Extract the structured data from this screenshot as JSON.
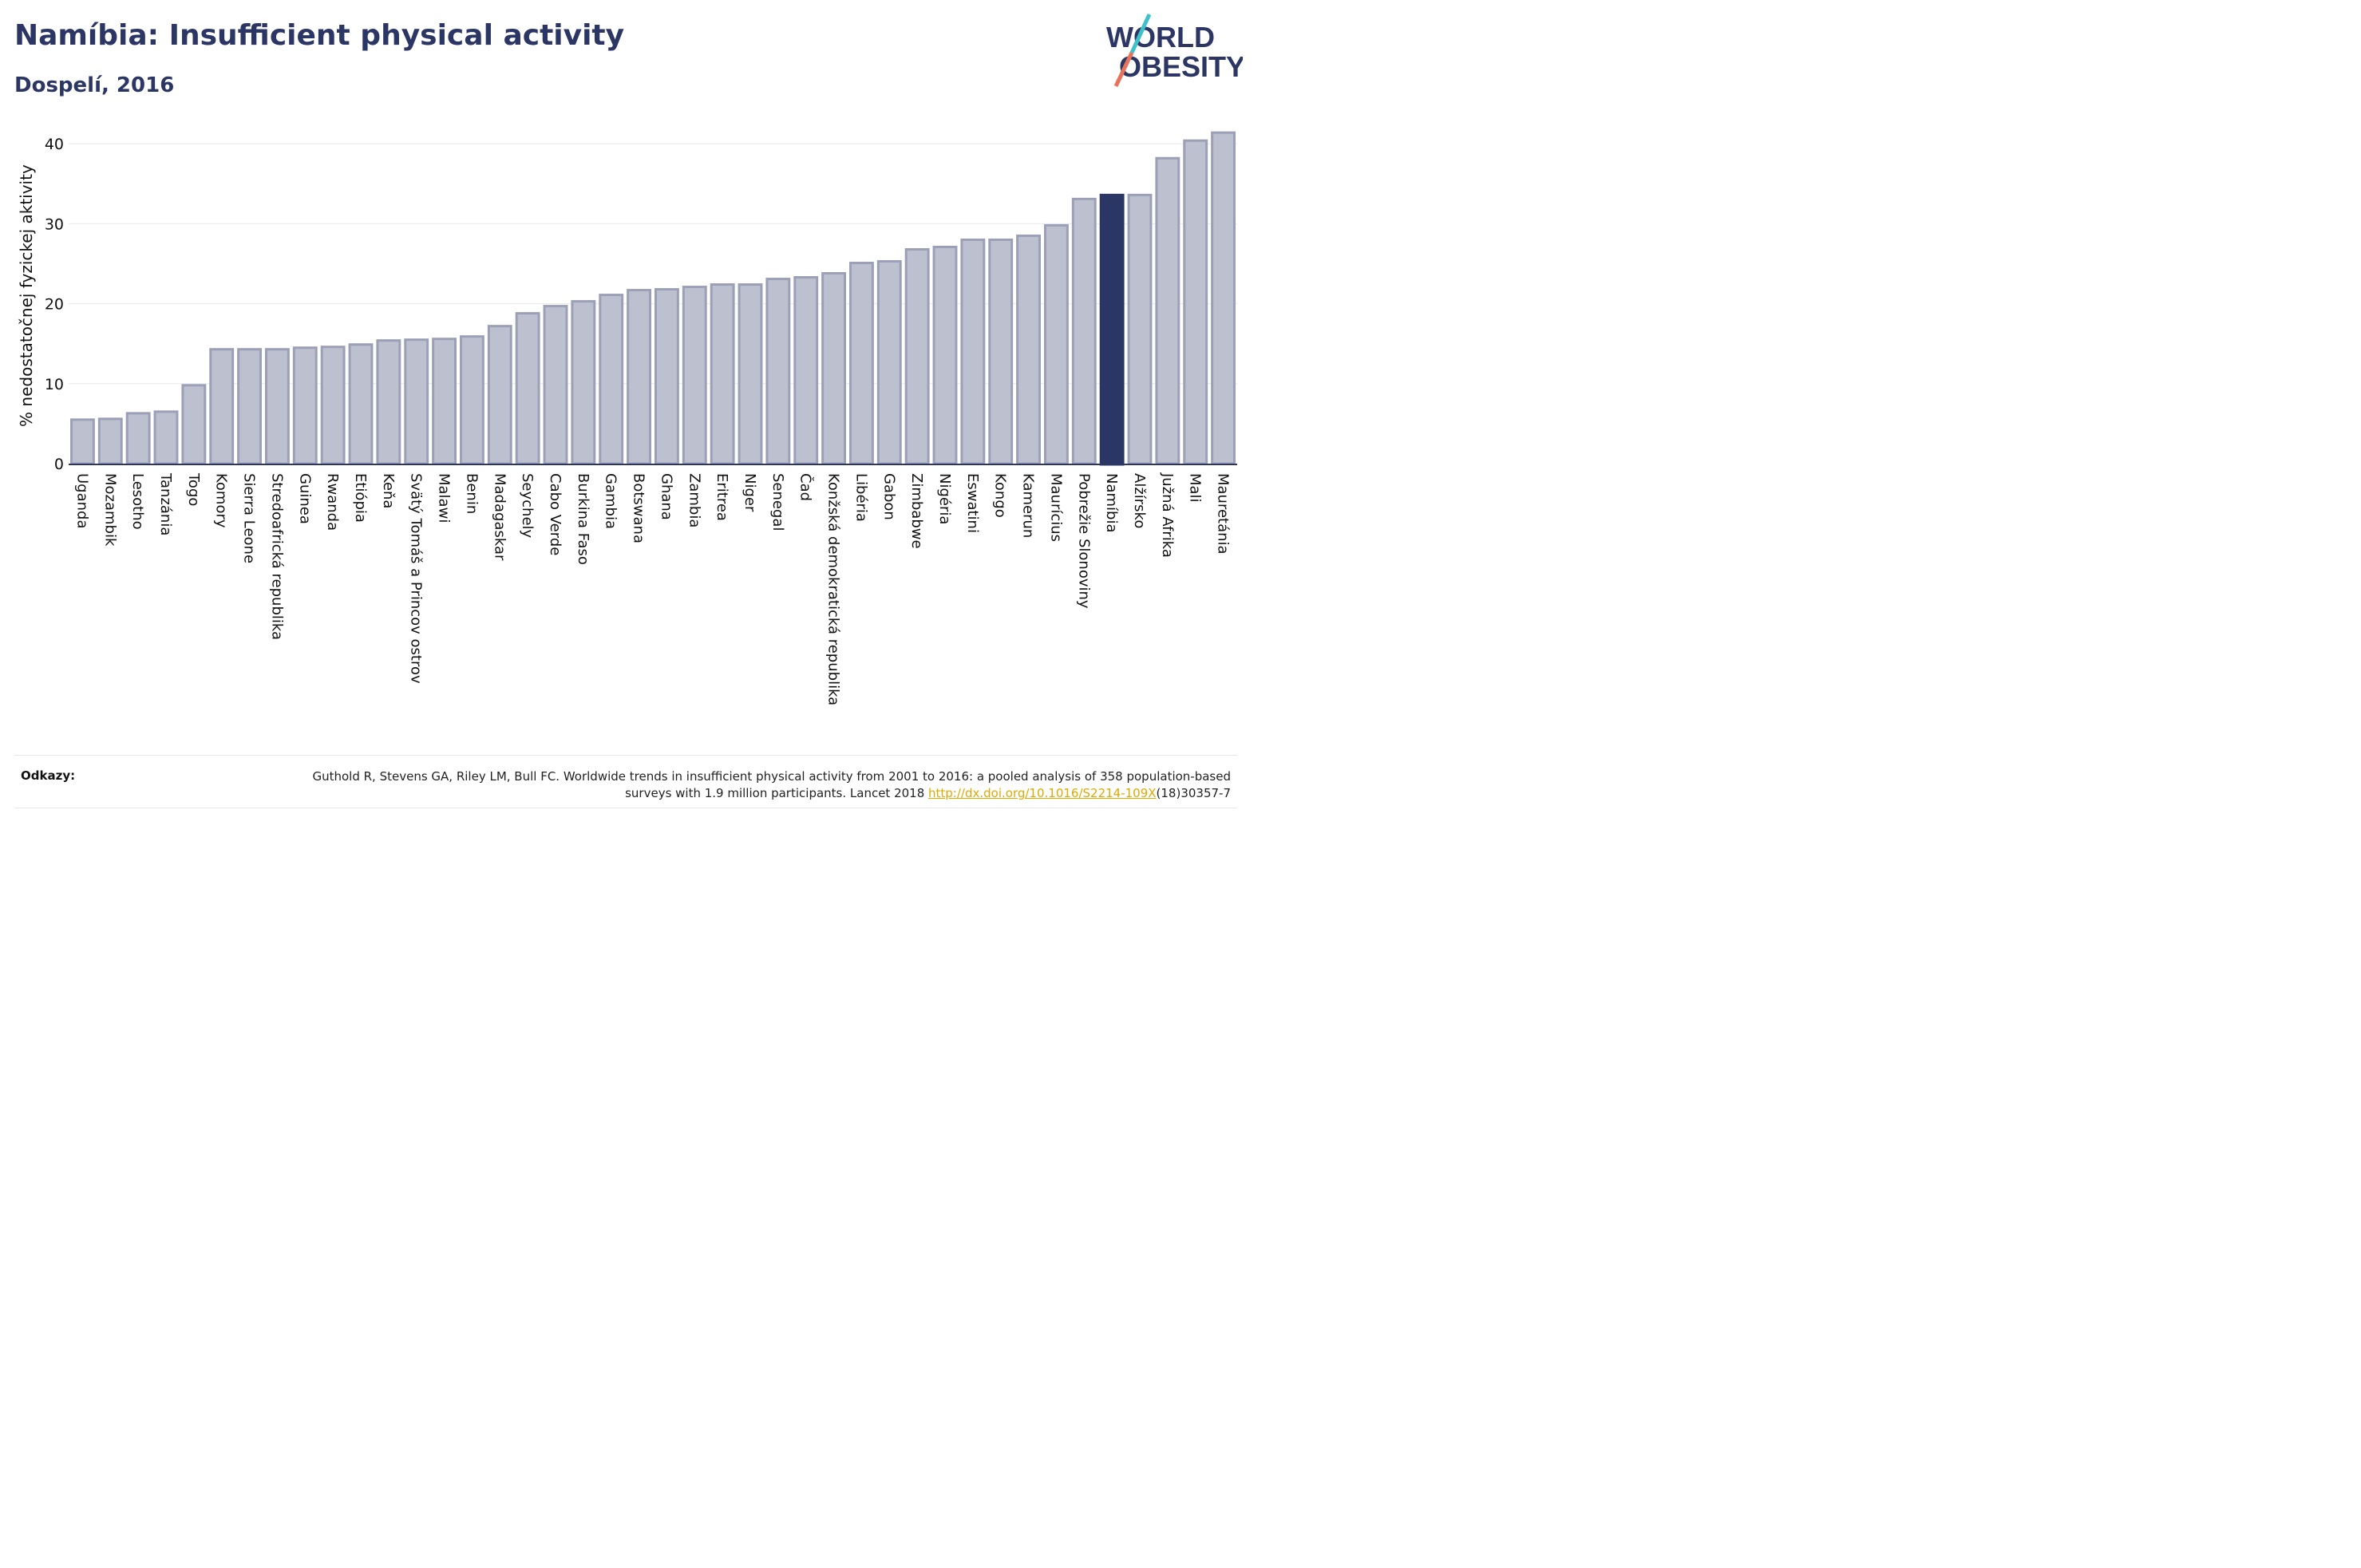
{
  "title": "Namíbia: Insufficient physical activity",
  "subtitle": "Dospelí, 2016",
  "logo": {
    "line1": "WORLD",
    "line2": "OBESITY",
    "slash_colors": [
      "#3cc2c8",
      "#e8735a"
    ]
  },
  "references": {
    "label": "Odkazy:",
    "text_before": "Guthold R, Stevens GA, Riley LM, Bull FC. Worldwide trends in insufficient physical activity from 2001 to 2016: a pooled analysis of 358 population-based surveys with 1.9 million participants. Lancet 2018 ",
    "link": "http://dx.doi.org/10.1016/S2214-109X",
    "text_after": "(18)30357-7"
  },
  "colors": {
    "bar": "#bcc0cf",
    "bar_stroke": "#9ba0b6",
    "highlight": "#2b3665",
    "grid": "#e8e8ee",
    "axis": "#2b3665",
    "link": "#e0a800"
  },
  "chart_data": {
    "type": "bar",
    "ylabel": "% nedostatočnej fyzickej aktivity",
    "ylim": [
      0,
      42
    ],
    "yticks": [
      0,
      10,
      20,
      30,
      40
    ],
    "grid": true,
    "highlight": "Namíbia",
    "categories": [
      "Uganda",
      "Mozambik",
      "Lesotho",
      "Tanzánia",
      "Togo",
      "Komory",
      "Sierra Leone",
      "Stredoafrická republika",
      "Guinea",
      "Rwanda",
      "Etiópia",
      "Keňa",
      "Svätý Tomáš a Princov ostrov",
      "Malawi",
      "Benin",
      "Madagaskar",
      "Seychely",
      "Cabo Verde",
      "Burkina Faso",
      "Gambia",
      "Botswana",
      "Ghana",
      "Zambia",
      "Eritrea",
      "Niger",
      "Senegal",
      "Čad",
      "Konžská demokratická republika",
      "Libéria",
      "Gabon",
      "Zimbabwe",
      "Nigéria",
      "Eswatini",
      "Kongo",
      "Kamerun",
      "Maurícius",
      "Pobrežie Slonoviny",
      "Namíbia",
      "Alžírsko",
      "Južná Afrika",
      "Mali",
      "Mauretánia"
    ],
    "values": [
      5.5,
      5.6,
      6.3,
      6.5,
      9.8,
      14.3,
      14.3,
      14.3,
      14.5,
      14.6,
      14.9,
      15.4,
      15.5,
      15.6,
      15.9,
      17.2,
      18.8,
      19.7,
      20.3,
      21.1,
      21.7,
      21.8,
      22.1,
      22.4,
      22.4,
      23.1,
      23.3,
      23.8,
      25.1,
      25.3,
      26.8,
      27.1,
      28.0,
      28.0,
      28.5,
      29.8,
      33.1,
      33.6,
      33.6,
      38.2,
      40.4,
      41.4
    ]
  }
}
